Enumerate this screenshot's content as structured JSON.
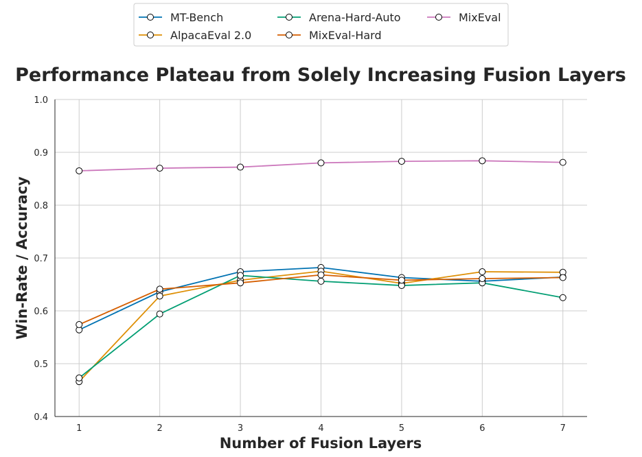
{
  "chart_data": {
    "type": "line",
    "title": "Performance Plateau from Solely Increasing Fusion Layers",
    "xlabel": "Number of Fusion Layers",
    "ylabel": "Win-Rate / Accuracy",
    "x": [
      1,
      2,
      3,
      4,
      5,
      6,
      7
    ],
    "xlim": [
      0.7,
      7.3
    ],
    "ylim": [
      0.4,
      1.0
    ],
    "yticks": [
      "0.4",
      "0.5",
      "0.6",
      "0.7",
      "0.8",
      "0.9",
      "1.0"
    ],
    "xticks": [
      "1",
      "2",
      "3",
      "4",
      "5",
      "6",
      "7"
    ],
    "grid": true,
    "legend_position": "top-center",
    "series": [
      {
        "name": "MT-Bench",
        "color": "#0072b2",
        "values": [
          0.564,
          0.636,
          0.674,
          0.682,
          0.663,
          0.656,
          0.664
        ]
      },
      {
        "name": "AlpacaEval 2.0",
        "color": "#de8f05",
        "values": [
          0.466,
          0.628,
          0.658,
          0.675,
          0.652,
          0.674,
          0.673
        ]
      },
      {
        "name": "Arena-Hard-Auto",
        "color": "#029e73",
        "values": [
          0.473,
          0.594,
          0.667,
          0.656,
          0.648,
          0.653,
          0.625
        ]
      },
      {
        "name": "MixEval-Hard",
        "color": "#d55e00",
        "values": [
          0.574,
          0.641,
          0.653,
          0.668,
          0.658,
          0.661,
          0.663
        ]
      },
      {
        "name": "MixEval",
        "color": "#cc78bc",
        "values": [
          0.865,
          0.87,
          0.872,
          0.88,
          0.883,
          0.884,
          0.881
        ]
      }
    ]
  }
}
